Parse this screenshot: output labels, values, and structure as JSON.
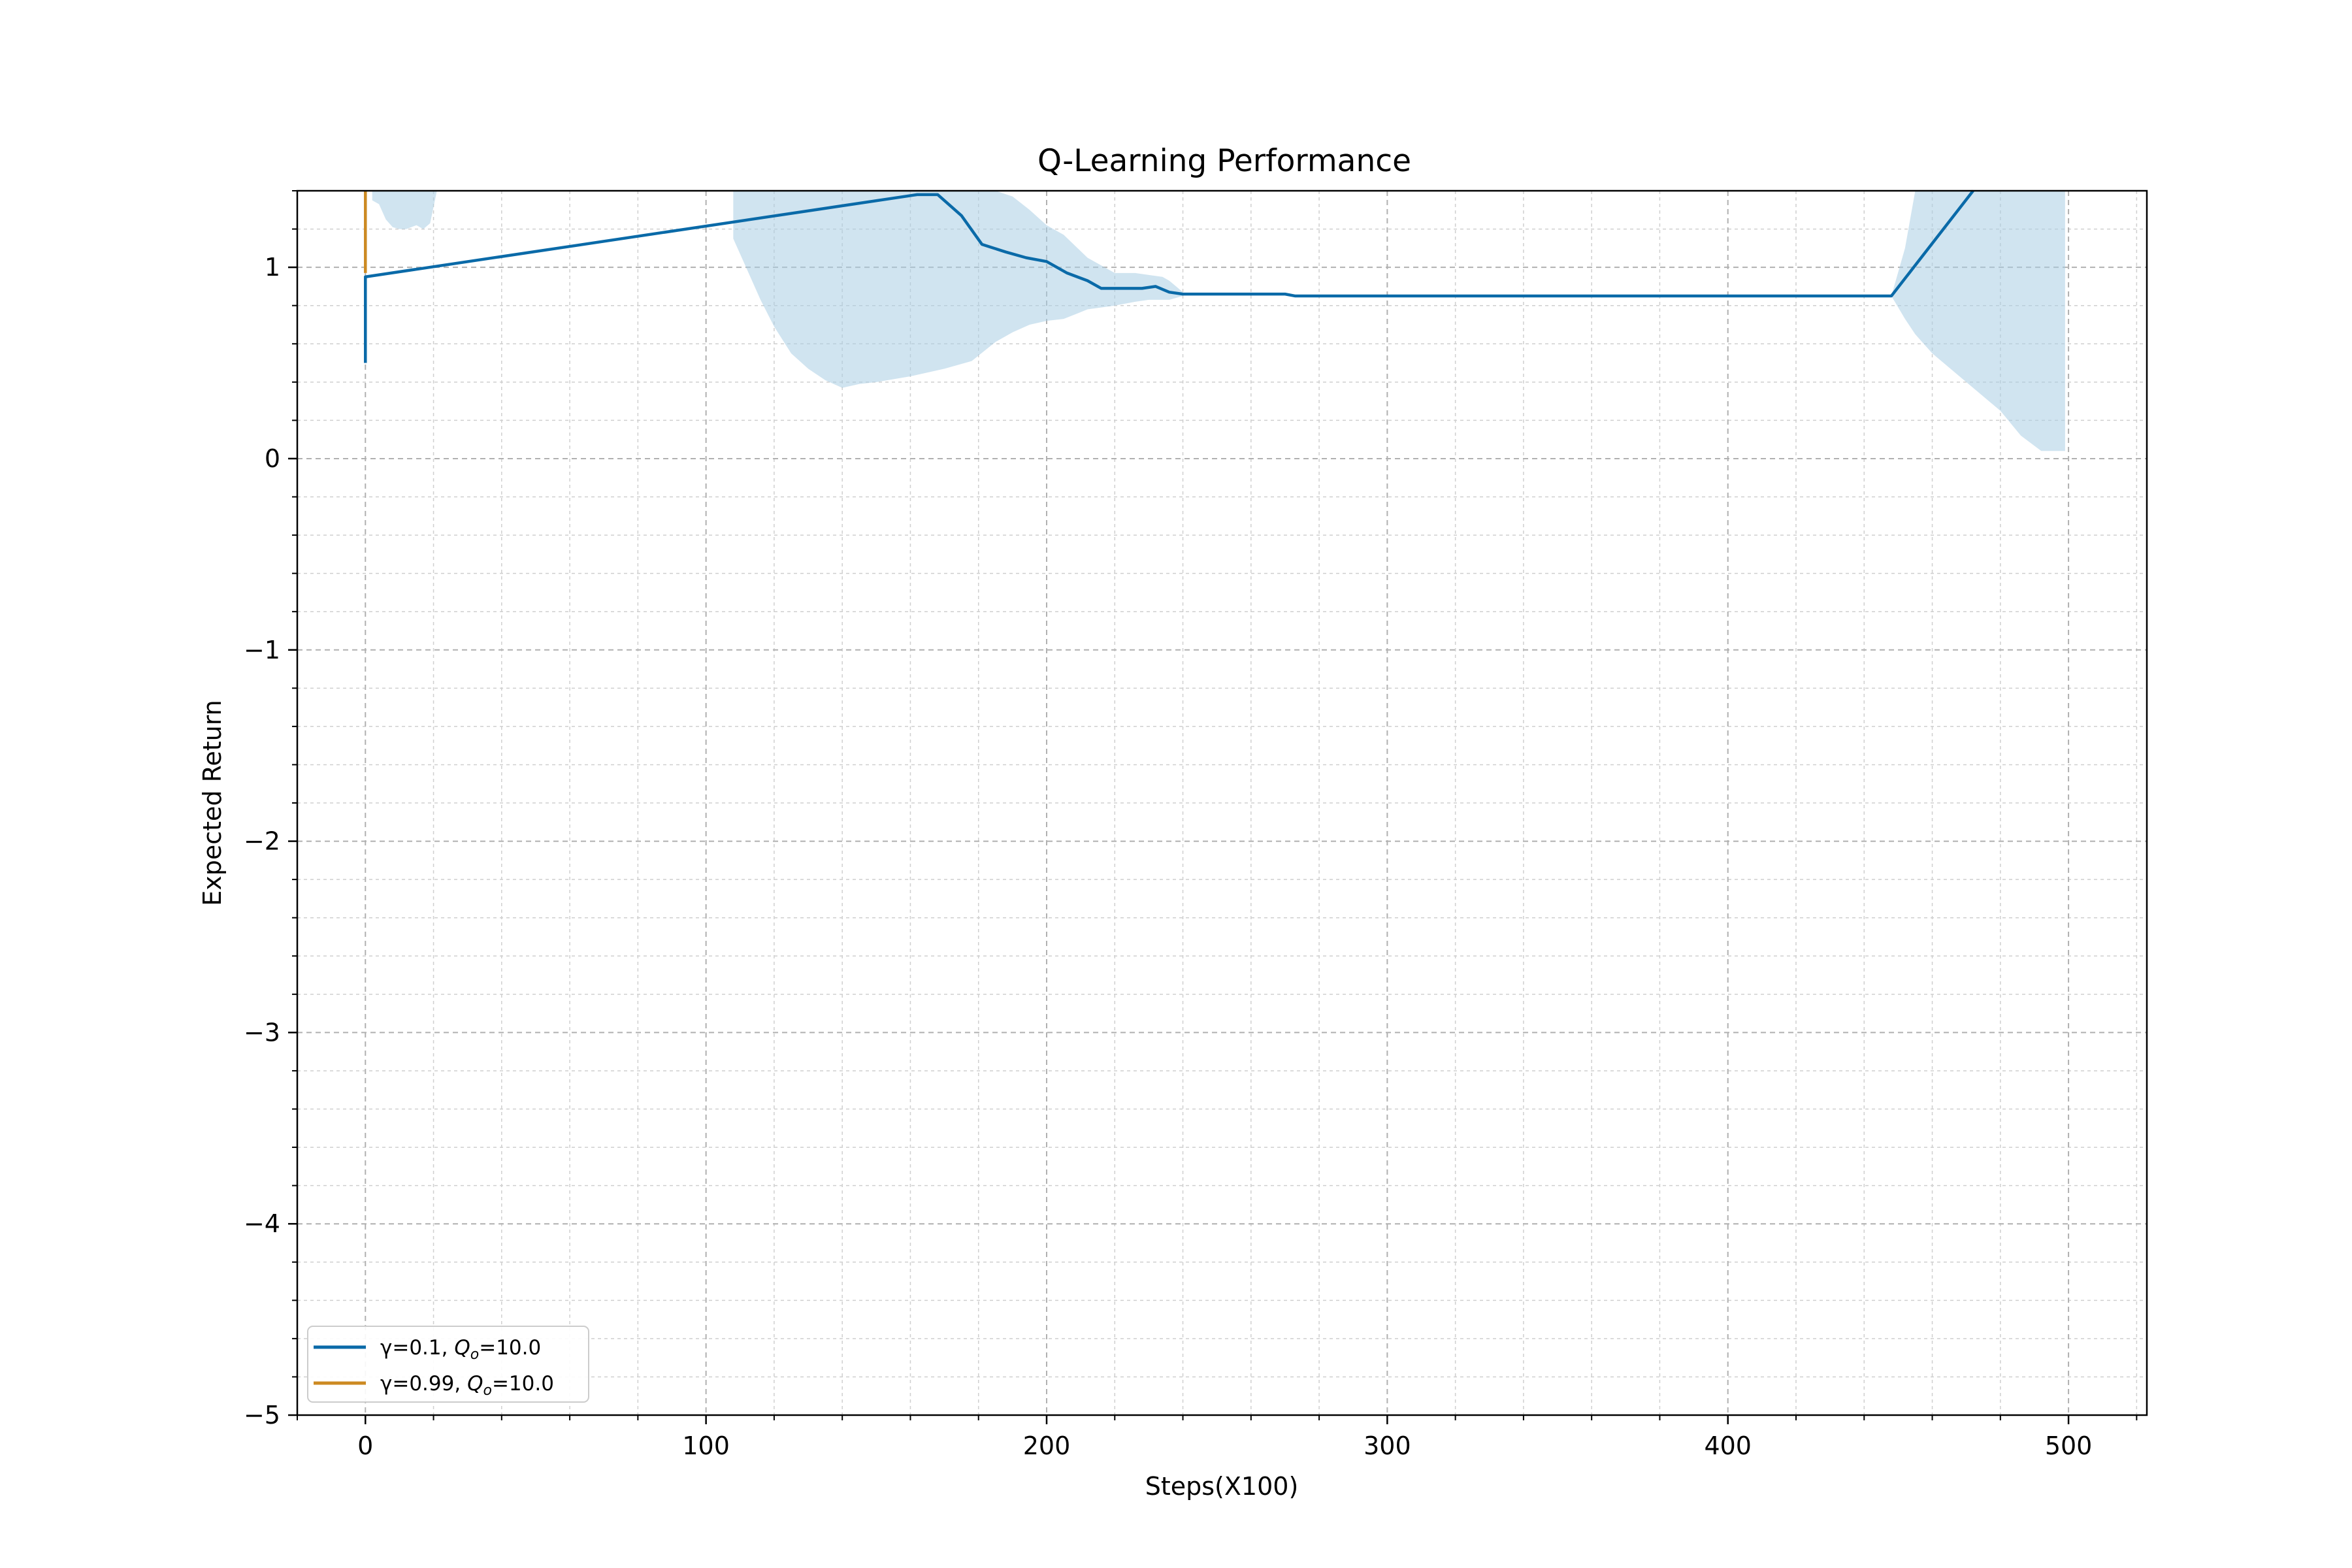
{
  "chart_data": {
    "type": "line",
    "title": "Q-Learning Performance",
    "xlabel": "Steps(X100)",
    "ylabel": "Expected Return",
    "xlim": [
      -20,
      523
    ],
    "ylim": [
      -5,
      1.4
    ],
    "xticks": [
      0,
      100,
      200,
      300,
      400,
      500
    ],
    "yticks": [
      -5,
      -4,
      -3,
      -2,
      -1,
      0,
      1
    ],
    "grid": true,
    "legend_position": "lower-left",
    "series": [
      {
        "name": "γ=0.1, Qo=10.0",
        "legend": {
          "pre": "γ=0.1, ",
          "sym": "Q",
          "sub": "o",
          "post": "=10.0"
        },
        "color": "#0a6aa8",
        "x": [
          0,
          0,
          162,
          168,
          175,
          181,
          188,
          194,
          200,
          206,
          212,
          216,
          222,
          228,
          232,
          236,
          240,
          250,
          260,
          270,
          273,
          300,
          350,
          400,
          448,
          472
        ],
        "y": [
          0.5,
          0.95,
          1.38,
          1.38,
          1.27,
          1.12,
          1.08,
          1.05,
          1.03,
          0.97,
          0.93,
          0.89,
          0.89,
          0.89,
          0.9,
          0.87,
          0.86,
          0.86,
          0.86,
          0.86,
          0.85,
          0.85,
          0.85,
          0.85,
          0.85,
          1.4
        ]
      },
      {
        "name": "γ=0.99, Qo=10.0",
        "legend": {
          "pre": "γ=0.99, ",
          "sym": "Q",
          "sub": "o",
          "post": "=10.0"
        },
        "color": "#cc8a22",
        "x": [
          0,
          0
        ],
        "y": [
          0.97,
          1.4
        ]
      }
    ],
    "bands": [
      {
        "series": "γ=0.1, Qo=10.0",
        "color": "#a9cde3",
        "x": [
          2,
          4,
          6,
          8,
          10,
          12,
          15,
          17,
          19,
          21
        ],
        "upper": [
          1.4,
          1.4,
          1.4,
          1.4,
          1.4,
          1.4,
          1.4,
          1.4,
          1.4,
          1.4
        ],
        "lower": [
          1.35,
          1.33,
          1.25,
          1.21,
          1.2,
          1.2,
          1.22,
          1.2,
          1.23,
          1.4
        ]
      },
      {
        "series": "γ=0.1, Qo=10.0",
        "color": "#a9cde3",
        "x": [
          108,
          112,
          116,
          120,
          125,
          130,
          135,
          140,
          145,
          150,
          160,
          170,
          178,
          185,
          190,
          195,
          200,
          205,
          212,
          220,
          226,
          230,
          234,
          236,
          238,
          240
        ],
        "upper": [
          1.4,
          1.4,
          1.4,
          1.4,
          1.4,
          1.4,
          1.4,
          1.4,
          1.4,
          1.4,
          1.4,
          1.4,
          1.4,
          1.4,
          1.37,
          1.3,
          1.22,
          1.17,
          1.05,
          0.97,
          0.97,
          0.96,
          0.95,
          0.93,
          0.9,
          0.87
        ],
        "lower": [
          1.15,
          0.99,
          0.83,
          0.69,
          0.55,
          0.47,
          0.41,
          0.37,
          0.39,
          0.4,
          0.43,
          0.47,
          0.51,
          0.61,
          0.66,
          0.7,
          0.72,
          0.73,
          0.78,
          0.8,
          0.82,
          0.83,
          0.83,
          0.83,
          0.84,
          0.85
        ]
      },
      {
        "series": "γ=0.1, Qo=10.0",
        "color": "#a9cde3",
        "x": [
          448,
          452,
          455,
          460,
          470,
          480,
          486,
          492,
          499
        ],
        "upper": [
          0.85,
          1.1,
          1.4,
          1.4,
          1.4,
          1.4,
          1.4,
          1.4,
          1.4
        ],
        "lower": [
          0.85,
          0.73,
          0.65,
          0.55,
          0.4,
          0.25,
          0.12,
          0.04,
          0.04
        ]
      }
    ]
  }
}
